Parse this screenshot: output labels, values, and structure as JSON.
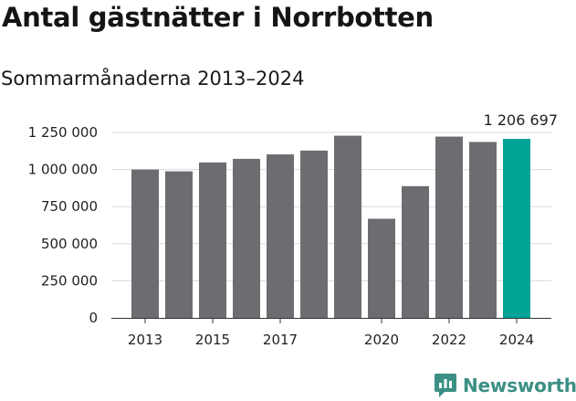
{
  "header": {
    "title": "Antal gästnätter i Norrbotten",
    "subtitle": "Sommarmånaderna 2013–2024"
  },
  "brand": {
    "name": "Newsworthy",
    "icon": "newsworthy-logo-icon",
    "color": "#3c8f84"
  },
  "chart_data": {
    "type": "bar",
    "title": "Antal gästnätter i Norrbotten",
    "subtitle": "Sommarmånaderna 2013–2024",
    "xlabel": "",
    "ylabel": "",
    "categories": [
      "2013",
      "2014",
      "2015",
      "2016",
      "2017",
      "2018",
      "2019",
      "2020",
      "2021",
      "2022",
      "2023",
      "2024"
    ],
    "values": [
      1000000,
      988000,
      1048000,
      1072000,
      1102000,
      1128000,
      1228000,
      668000,
      888000,
      1222000,
      1186000,
      1206697
    ],
    "x_tick_labels": [
      "2013",
      "2015",
      "2017",
      "2020",
      "2022",
      "2024"
    ],
    "y_ticks": [
      0,
      250000,
      500000,
      750000,
      1000000,
      1250000
    ],
    "y_tick_labels": [
      "0",
      "250 000",
      "500 000",
      "750 000",
      "1 000 000",
      "1 250 000"
    ],
    "ylim": [
      0,
      1250000
    ],
    "grid": true,
    "highlight_category": "2024",
    "highlight_label": "1 206 697",
    "colors": {
      "bar": "#6d6c70",
      "highlight": "#00a497",
      "grid": "#d9d9d9",
      "axis": "#333333"
    }
  }
}
